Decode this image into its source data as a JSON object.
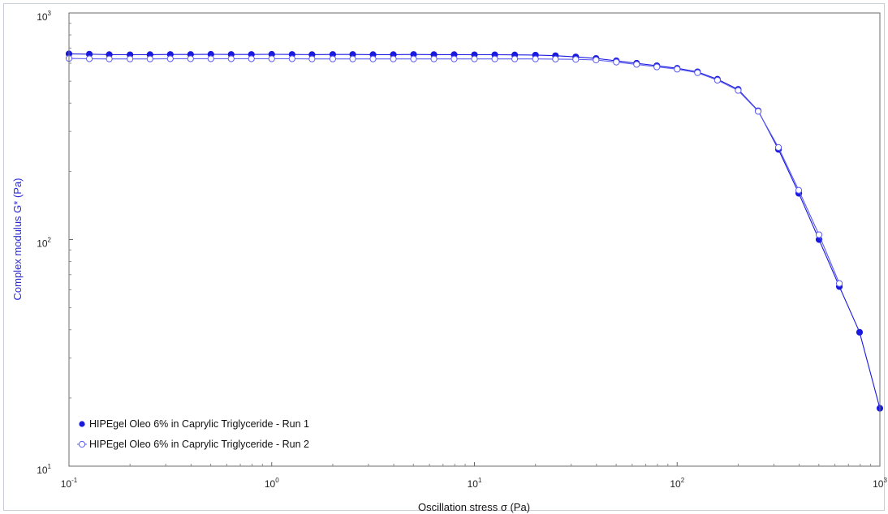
{
  "chart_data": {
    "type": "line",
    "xscale": "log",
    "yscale": "log",
    "xlim": [
      0.1,
      1000
    ],
    "ylim": [
      10,
      1000
    ],
    "xlabel": "Oscillation stress σ (Pa)",
    "ylabel": "Complex modulus G* (Pa)",
    "x_ticks": [
      {
        "base": "10",
        "exp": "-1",
        "value": 0.1
      },
      {
        "base": "10",
        "exp": "0",
        "value": 1
      },
      {
        "base": "10",
        "exp": "1",
        "value": 10
      },
      {
        "base": "10",
        "exp": "2",
        "value": 100
      },
      {
        "base": "10",
        "exp": "3",
        "value": 1000
      }
    ],
    "y_ticks": [
      {
        "base": "10",
        "exp": "1",
        "value": 10
      },
      {
        "base": "10",
        "exp": "2",
        "value": 100
      },
      {
        "base": "10",
        "exp": "3",
        "value": 1000
      }
    ],
    "grid": false,
    "legend_position": "bottom-left",
    "series": [
      {
        "name": "HIPEgel Oleo 6% in Caprylic Triglyceride - Run 1",
        "marker": "filled-circle",
        "color": "#1a1adf",
        "x": [
          0.1,
          0.126,
          0.158,
          0.2,
          0.251,
          0.316,
          0.398,
          0.501,
          0.631,
          0.794,
          1.0,
          1.26,
          1.58,
          2.0,
          2.51,
          3.16,
          3.98,
          5.01,
          6.31,
          7.94,
          10.0,
          12.6,
          15.8,
          20.0,
          25.1,
          31.6,
          39.8,
          50.1,
          63.1,
          79.4,
          100,
          126,
          158,
          200,
          251,
          316,
          398,
          501,
          631,
          794,
          1000
        ],
        "y": [
          660,
          658,
          655,
          654,
          655,
          656,
          656,
          657,
          656,
          656,
          657,
          656,
          655,
          656,
          656,
          655,
          655,
          656,
          655,
          655,
          654,
          654,
          653,
          652,
          648,
          640,
          630,
          615,
          600,
          585,
          570,
          550,
          510,
          460,
          370,
          250,
          160,
          100,
          62,
          39,
          18
        ]
      },
      {
        "name": "HIPEgel Oleo 6% in Caprylic Triglyceride - Run 2",
        "marker": "open-circle",
        "color": "#5a5af0",
        "x": [
          0.1,
          0.126,
          0.158,
          0.2,
          0.251,
          0.316,
          0.398,
          0.501,
          0.631,
          0.794,
          1.0,
          1.26,
          1.58,
          2.0,
          2.51,
          3.16,
          3.98,
          5.01,
          6.31,
          7.94,
          10.0,
          12.6,
          15.8,
          20.0,
          25.1,
          31.6,
          39.8,
          50.1,
          63.1,
          79.4,
          100,
          126,
          158,
          200,
          251,
          316,
          398,
          501,
          631
        ],
        "y": [
          630,
          628,
          627,
          627,
          627,
          628,
          628,
          628,
          628,
          628,
          628,
          628,
          627,
          627,
          627,
          627,
          627,
          627,
          627,
          627,
          627,
          627,
          627,
          627,
          626,
          624,
          620,
          607,
          593,
          578,
          565,
          545,
          505,
          455,
          368,
          255,
          165,
          105,
          64
        ]
      }
    ]
  }
}
